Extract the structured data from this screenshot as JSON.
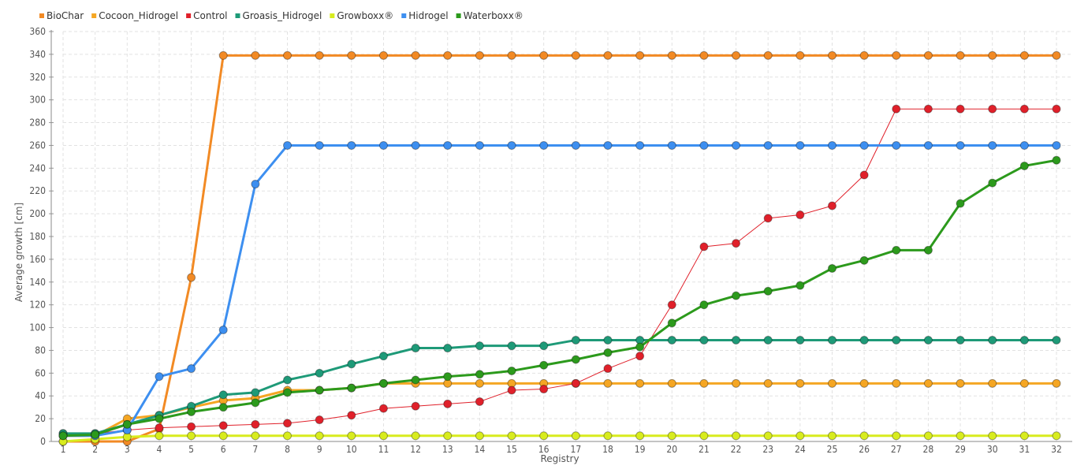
{
  "chart_data": {
    "type": "line",
    "title": "",
    "xlabel": "Registry",
    "ylabel": "Average growth [cm]",
    "ylim": [
      0,
      360
    ],
    "y_ticks": [
      0,
      20,
      40,
      60,
      80,
      100,
      120,
      140,
      160,
      180,
      200,
      220,
      240,
      260,
      280,
      300,
      320,
      340,
      360
    ],
    "grid": true,
    "legend_position": "top-left",
    "x": [
      1,
      2,
      3,
      4,
      5,
      6,
      7,
      8,
      9,
      10,
      11,
      12,
      13,
      14,
      15,
      16,
      17,
      18,
      19,
      20,
      21,
      22,
      23,
      24,
      25,
      26,
      27,
      28,
      29,
      30,
      31,
      32
    ],
    "series": [
      {
        "name": "BioChar",
        "color": "#f28a24",
        "values": [
          0,
          0,
          0,
          11,
          144,
          339,
          339,
          339,
          339,
          339,
          339,
          339,
          339,
          339,
          339,
          339,
          339,
          339,
          339,
          339,
          339,
          339,
          339,
          339,
          339,
          339,
          339,
          339,
          339,
          339,
          339,
          339
        ]
      },
      {
        "name": "Cocoon_Hidrogel",
        "color": "#f5a623",
        "values": [
          5,
          5,
          20,
          23,
          30,
          36,
          38,
          45,
          45,
          47,
          51,
          51,
          51,
          51,
          51,
          51,
          51,
          51,
          51,
          51,
          51,
          51,
          51,
          51,
          51,
          51,
          51,
          51,
          51,
          51,
          51,
          51
        ]
      },
      {
        "name": "Control",
        "color": "#e0202a",
        "values": [
          7,
          7,
          10,
          12,
          13,
          14,
          15,
          16,
          19,
          23,
          29,
          31,
          33,
          35,
          45,
          46,
          51,
          64,
          75,
          120,
          171,
          174,
          196,
          199,
          207,
          234,
          292,
          292,
          292,
          292,
          292,
          292
        ]
      },
      {
        "name": "Groasis_Hidrogel",
        "color": "#1e9a78",
        "values": [
          7,
          7,
          15,
          23,
          31,
          41,
          43,
          54,
          60,
          68,
          75,
          82,
          82,
          84,
          84,
          84,
          89,
          89,
          89,
          89,
          89,
          89,
          89,
          89,
          89,
          89,
          89,
          89,
          89,
          89,
          89,
          89
        ]
      },
      {
        "name": "Growboxx®",
        "color": "#d8ec1e",
        "values": [
          0,
          2,
          4,
          5,
          5,
          5,
          5,
          5,
          5,
          5,
          5,
          5,
          5,
          5,
          5,
          5,
          5,
          5,
          5,
          5,
          5,
          5,
          5,
          5,
          5,
          5,
          5,
          5,
          5,
          5,
          5,
          5
        ]
      },
      {
        "name": "Hidrogel",
        "color": "#3d8ff0",
        "values": [
          5,
          5,
          10,
          57,
          64,
          98,
          226,
          260,
          260,
          260,
          260,
          260,
          260,
          260,
          260,
          260,
          260,
          260,
          260,
          260,
          260,
          260,
          260,
          260,
          260,
          260,
          260,
          260,
          260,
          260,
          260,
          260
        ]
      },
      {
        "name": "Waterboxx®",
        "color": "#2c9a1c",
        "values": [
          5,
          6,
          15,
          20,
          26,
          30,
          34,
          43,
          45,
          47,
          51,
          54,
          57,
          59,
          62,
          67,
          72,
          78,
          83,
          104,
          120,
          128,
          132,
          137,
          152,
          159,
          168,
          168,
          209,
          227,
          242,
          247
        ]
      }
    ]
  }
}
